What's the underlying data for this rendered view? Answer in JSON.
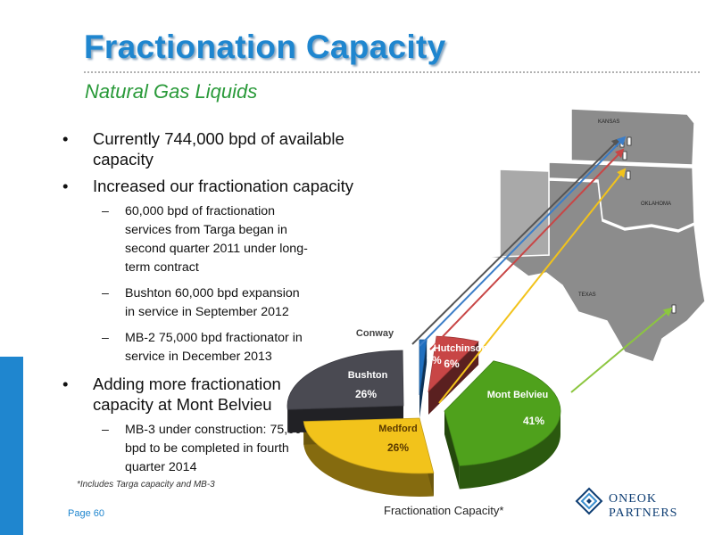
{
  "slide": {
    "title": "Fractionation Capacity",
    "subtitle": "Natural Gas Liquids",
    "page_label": "Page 60",
    "footnote": "*Includes Targa capacity and MB-3"
  },
  "bullets": [
    {
      "level": 1,
      "text": "Currently 744,000 bpd of available capacity"
    },
    {
      "level": 1,
      "text": "Increased our fractionation capacity"
    },
    {
      "level": 2,
      "text": "60,000 bpd of fractionation services from Targa began in second quarter 2011 under long-term contract"
    },
    {
      "level": 2,
      "text": "Bushton 60,000 bpd expansion in service in September 2012"
    },
    {
      "level": 2,
      "text": "MB-2 75,000 bpd fractionator in service in December 2013"
    },
    {
      "level": 1,
      "text": "Adding more fractionation capacity at Mont Belvieu"
    },
    {
      "level": 2,
      "text": "MB-3 under construction: 75,000 bpd to be completed in fourth quarter 2014"
    }
  ],
  "map": {
    "state_labels": [
      "KANSAS",
      "OKLAHOMA",
      "TEXAS"
    ],
    "colors": {
      "land": "#8c8c8c",
      "land_light": "#a9a9a9",
      "border": "#ffffff"
    }
  },
  "chart_data": {
    "type": "pie",
    "title": "Fractionation Capacity*",
    "slices": [
      {
        "label": "Mont Belvieu",
        "value": 41,
        "display": "41%",
        "color": "#4fa11c"
      },
      {
        "label": "Medford",
        "value": 26,
        "display": "26%",
        "color": "#f2c31b"
      },
      {
        "label": "Bushton",
        "value": 26,
        "display": "26%",
        "color": "#4a4a52"
      },
      {
        "label": "Conway",
        "value": 1,
        "display": "1%",
        "color": "#1f6fbf"
      },
      {
        "label": "Hutchinson",
        "value": 6,
        "display": "6%",
        "color": "#c84646"
      }
    ],
    "arrows": [
      {
        "from": "Bushton",
        "color": "#555555"
      },
      {
        "from": "Conway",
        "color": "#3b7dc8"
      },
      {
        "from": "Hutchinson",
        "color": "#c84646"
      },
      {
        "from": "Medford",
        "color": "#f2c31b"
      },
      {
        "from": "Mont Belvieu",
        "color": "#8cc63f"
      }
    ]
  },
  "logo": {
    "line1": "ONEOK",
    "line2": "PARTNERS"
  }
}
